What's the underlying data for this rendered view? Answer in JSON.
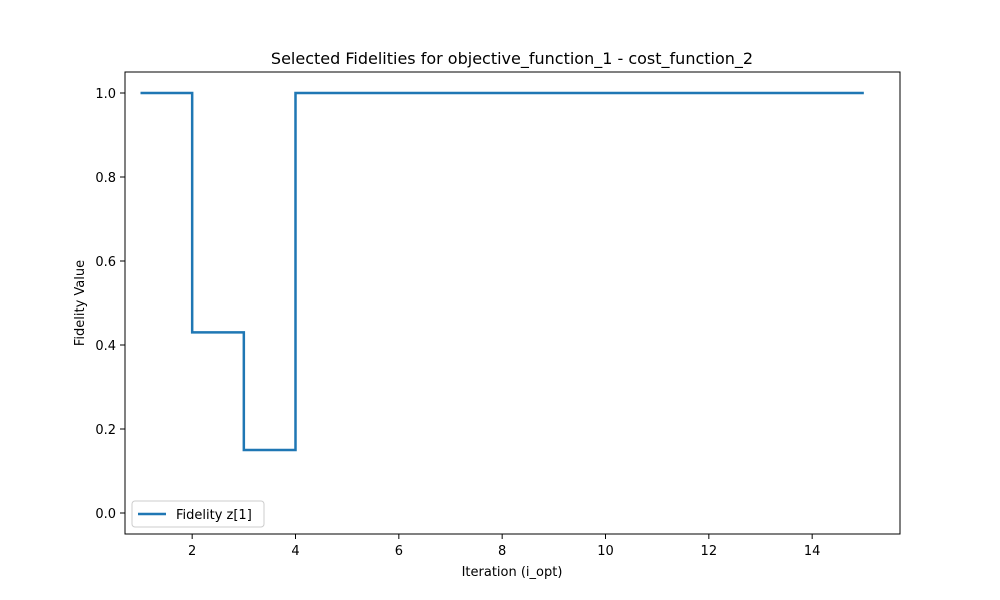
{
  "chart_data": {
    "type": "line",
    "drawstyle": "steps-post",
    "title": "Selected Fidelities for objective_function_1 - cost_function_2",
    "xlabel": "Iteration (i_opt)",
    "ylabel": "Fidelity Value",
    "xlim": [
      0.7,
      15.7
    ],
    "ylim": [
      -0.05,
      1.05
    ],
    "xticks": [
      2,
      4,
      6,
      8,
      10,
      12,
      14
    ],
    "yticks": [
      0.0,
      0.2,
      0.4,
      0.6,
      0.8,
      1.0
    ],
    "xtick_labels": [
      "2",
      "4",
      "6",
      "8",
      "10",
      "12",
      "14"
    ],
    "ytick_labels": [
      "0.0",
      "0.2",
      "0.4",
      "0.6",
      "0.8",
      "1.0"
    ],
    "grid": false,
    "legend_position": "lower-left",
    "series": [
      {
        "name": "Fidelity z[1]",
        "color": "#1f77b4",
        "x": [
          1,
          2,
          3,
          4,
          5,
          6,
          7,
          8,
          9,
          10,
          11,
          12,
          13,
          14,
          15
        ],
        "y": [
          1.0,
          0.43,
          0.15,
          1.0,
          1.0,
          1.0,
          1.0,
          1.0,
          1.0,
          1.0,
          1.0,
          1.0,
          1.0,
          1.0,
          1.0
        ]
      }
    ]
  }
}
